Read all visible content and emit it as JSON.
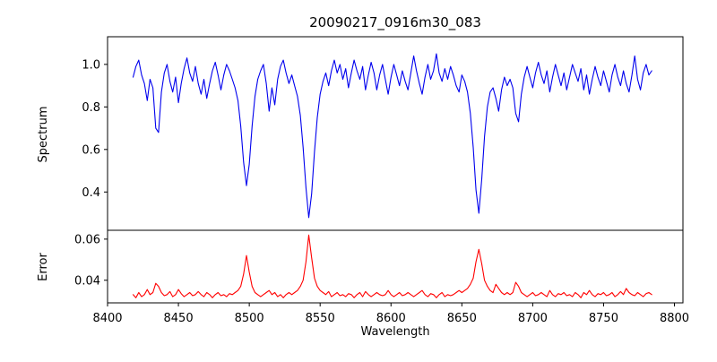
{
  "chart_data": {
    "type": "line",
    "title": "20090217_0916m30_083",
    "xlabel": "Wavelength",
    "grid": false,
    "legend": "none",
    "xlim": [
      8400,
      8806
    ],
    "xticks": [
      8400,
      8450,
      8500,
      8550,
      8600,
      8650,
      8700,
      8750,
      8800
    ],
    "xtick_labels": [
      "8400",
      "8450",
      "8500",
      "8550",
      "8600",
      "8650",
      "8700",
      "8750",
      "8800"
    ],
    "x": [
      8418,
      8420,
      8422,
      8424,
      8426,
      8428,
      8430,
      8432,
      8434,
      8436,
      8438,
      8440,
      8442,
      8444,
      8446,
      8448,
      8450,
      8452,
      8454,
      8456,
      8458,
      8460,
      8462,
      8464,
      8466,
      8468,
      8470,
      8472,
      8474,
      8476,
      8478,
      8480,
      8482,
      8484,
      8486,
      8488,
      8490,
      8492,
      8494,
      8496,
      8498,
      8500,
      8502,
      8504,
      8506,
      8508,
      8510,
      8512,
      8514,
      8516,
      8518,
      8520,
      8522,
      8524,
      8526,
      8528,
      8530,
      8532,
      8534,
      8536,
      8538,
      8540,
      8542,
      8544,
      8546,
      8548,
      8550,
      8552,
      8554,
      8556,
      8558,
      8560,
      8562,
      8564,
      8566,
      8568,
      8570,
      8572,
      8574,
      8576,
      8578,
      8580,
      8582,
      8584,
      8586,
      8588,
      8590,
      8592,
      8594,
      8596,
      8598,
      8600,
      8602,
      8604,
      8606,
      8608,
      8610,
      8612,
      8614,
      8616,
      8618,
      8620,
      8622,
      8624,
      8626,
      8628,
      8630,
      8632,
      8634,
      8636,
      8638,
      8640,
      8642,
      8644,
      8646,
      8648,
      8650,
      8652,
      8654,
      8656,
      8658,
      8660,
      8662,
      8664,
      8666,
      8668,
      8670,
      8672,
      8674,
      8676,
      8678,
      8680,
      8682,
      8684,
      8686,
      8688,
      8690,
      8692,
      8694,
      8696,
      8698,
      8700,
      8702,
      8704,
      8706,
      8708,
      8710,
      8712,
      8714,
      8716,
      8718,
      8720,
      8722,
      8724,
      8726,
      8728,
      8730,
      8732,
      8734,
      8736,
      8738,
      8740,
      8742,
      8744,
      8746,
      8748,
      8750,
      8752,
      8754,
      8756,
      8758,
      8760,
      8762,
      8764,
      8766,
      8768,
      8770,
      8772,
      8774,
      8776,
      8778,
      8780,
      8782,
      8784
    ],
    "panels": [
      {
        "name": "spectrum",
        "ylabel": "Spectrum",
        "color": "#0000ee",
        "ylim": [
          0.22,
          1.13
        ],
        "yticks": [
          0.4,
          0.6,
          0.8,
          1.0
        ],
        "ytick_labels": [
          "0.4",
          "0.6",
          "0.8",
          "1.0"
        ],
        "notable_features": "Ca II triplet absorption lines near 8498, 8542 and 8662 with minima ~0.43, ~0.28 and ~0.30",
        "values": [
          0.94,
          0.99,
          1.02,
          0.95,
          0.91,
          0.83,
          0.93,
          0.89,
          0.7,
          0.68,
          0.87,
          0.96,
          1.0,
          0.92,
          0.87,
          0.94,
          0.82,
          0.91,
          0.98,
          1.03,
          0.96,
          0.92,
          0.99,
          0.91,
          0.86,
          0.93,
          0.84,
          0.91,
          0.97,
          1.01,
          0.95,
          0.88,
          0.95,
          1.0,
          0.97,
          0.93,
          0.89,
          0.83,
          0.71,
          0.54,
          0.43,
          0.53,
          0.71,
          0.85,
          0.93,
          0.97,
          1.0,
          0.91,
          0.78,
          0.89,
          0.81,
          0.93,
          0.99,
          1.02,
          0.96,
          0.91,
          0.95,
          0.9,
          0.85,
          0.76,
          0.61,
          0.42,
          0.28,
          0.39,
          0.59,
          0.75,
          0.86,
          0.92,
          0.96,
          0.9,
          0.97,
          1.02,
          0.96,
          1.0,
          0.93,
          0.98,
          0.89,
          0.96,
          1.02,
          0.97,
          0.93,
          0.99,
          0.88,
          0.95,
          1.01,
          0.96,
          0.88,
          0.95,
          1.0,
          0.93,
          0.86,
          0.94,
          1.0,
          0.95,
          0.9,
          0.97,
          0.92,
          0.88,
          0.96,
          1.04,
          0.97,
          0.91,
          0.86,
          0.94,
          1.0,
          0.93,
          0.97,
          1.05,
          0.96,
          0.92,
          0.98,
          0.93,
          0.99,
          0.95,
          0.9,
          0.87,
          0.95,
          0.92,
          0.87,
          0.77,
          0.61,
          0.41,
          0.3,
          0.46,
          0.66,
          0.8,
          0.87,
          0.89,
          0.84,
          0.78,
          0.88,
          0.94,
          0.9,
          0.93,
          0.89,
          0.77,
          0.73,
          0.86,
          0.94,
          0.99,
          0.94,
          0.89,
          0.96,
          1.01,
          0.95,
          0.91,
          0.97,
          0.87,
          0.94,
          1.0,
          0.95,
          0.9,
          0.96,
          0.88,
          0.94,
          1.0,
          0.96,
          0.92,
          0.98,
          0.88,
          0.95,
          0.86,
          0.93,
          0.99,
          0.94,
          0.9,
          0.97,
          0.92,
          0.87,
          0.95,
          1.0,
          0.94,
          0.9,
          0.97,
          0.91,
          0.87,
          0.95,
          1.04,
          0.93,
          0.88,
          0.96,
          1.0,
          0.95,
          0.97
        ]
      },
      {
        "name": "error",
        "ylabel": "Error",
        "color": "#ff0000",
        "ylim": [
          0.029,
          0.0643
        ],
        "yticks": [
          0.04,
          0.06
        ],
        "ytick_labels": [
          "0.04",
          "0.06"
        ],
        "notable_features": "Error peaks at the three Ca II line centers: ~0.052 at 8498, ~0.062 at 8542, ~0.055 at 8662; baseline ~0.033",
        "values": [
          0.033,
          0.0315,
          0.034,
          0.032,
          0.033,
          0.0355,
          0.033,
          0.034,
          0.0385,
          0.037,
          0.034,
          0.0325,
          0.033,
          0.0345,
          0.032,
          0.033,
          0.0355,
          0.0335,
          0.032,
          0.033,
          0.034,
          0.0325,
          0.033,
          0.0345,
          0.033,
          0.032,
          0.034,
          0.033,
          0.0315,
          0.033,
          0.034,
          0.0325,
          0.033,
          0.032,
          0.0335,
          0.033,
          0.034,
          0.035,
          0.037,
          0.043,
          0.052,
          0.044,
          0.037,
          0.034,
          0.033,
          0.032,
          0.033,
          0.034,
          0.035,
          0.033,
          0.034,
          0.032,
          0.033,
          0.0315,
          0.033,
          0.034,
          0.033,
          0.034,
          0.035,
          0.037,
          0.04,
          0.049,
          0.062,
          0.051,
          0.041,
          0.037,
          0.035,
          0.034,
          0.033,
          0.0345,
          0.032,
          0.033,
          0.034,
          0.0325,
          0.033,
          0.032,
          0.0335,
          0.033,
          0.0315,
          0.033,
          0.034,
          0.032,
          0.0345,
          0.033,
          0.032,
          0.033,
          0.034,
          0.033,
          0.0325,
          0.033,
          0.035,
          0.033,
          0.032,
          0.033,
          0.034,
          0.0325,
          0.033,
          0.034,
          0.033,
          0.032,
          0.033,
          0.034,
          0.035,
          0.033,
          0.032,
          0.0335,
          0.033,
          0.0315,
          0.033,
          0.034,
          0.032,
          0.033,
          0.0325,
          0.033,
          0.034,
          0.035,
          0.034,
          0.035,
          0.036,
          0.038,
          0.041,
          0.049,
          0.055,
          0.048,
          0.04,
          0.037,
          0.035,
          0.034,
          0.038,
          0.036,
          0.034,
          0.033,
          0.034,
          0.033,
          0.034,
          0.039,
          0.037,
          0.034,
          0.033,
          0.032,
          0.033,
          0.034,
          0.0325,
          0.033,
          0.034,
          0.033,
          0.032,
          0.035,
          0.033,
          0.032,
          0.0335,
          0.033,
          0.034,
          0.0325,
          0.033,
          0.032,
          0.034,
          0.033,
          0.0315,
          0.034,
          0.033,
          0.035,
          0.033,
          0.032,
          0.0335,
          0.033,
          0.034,
          0.0325,
          0.033,
          0.034,
          0.032,
          0.033,
          0.0345,
          0.033,
          0.036,
          0.034,
          0.033,
          0.0325,
          0.034,
          0.033,
          0.032,
          0.0335,
          0.034,
          0.033
        ]
      }
    ]
  }
}
